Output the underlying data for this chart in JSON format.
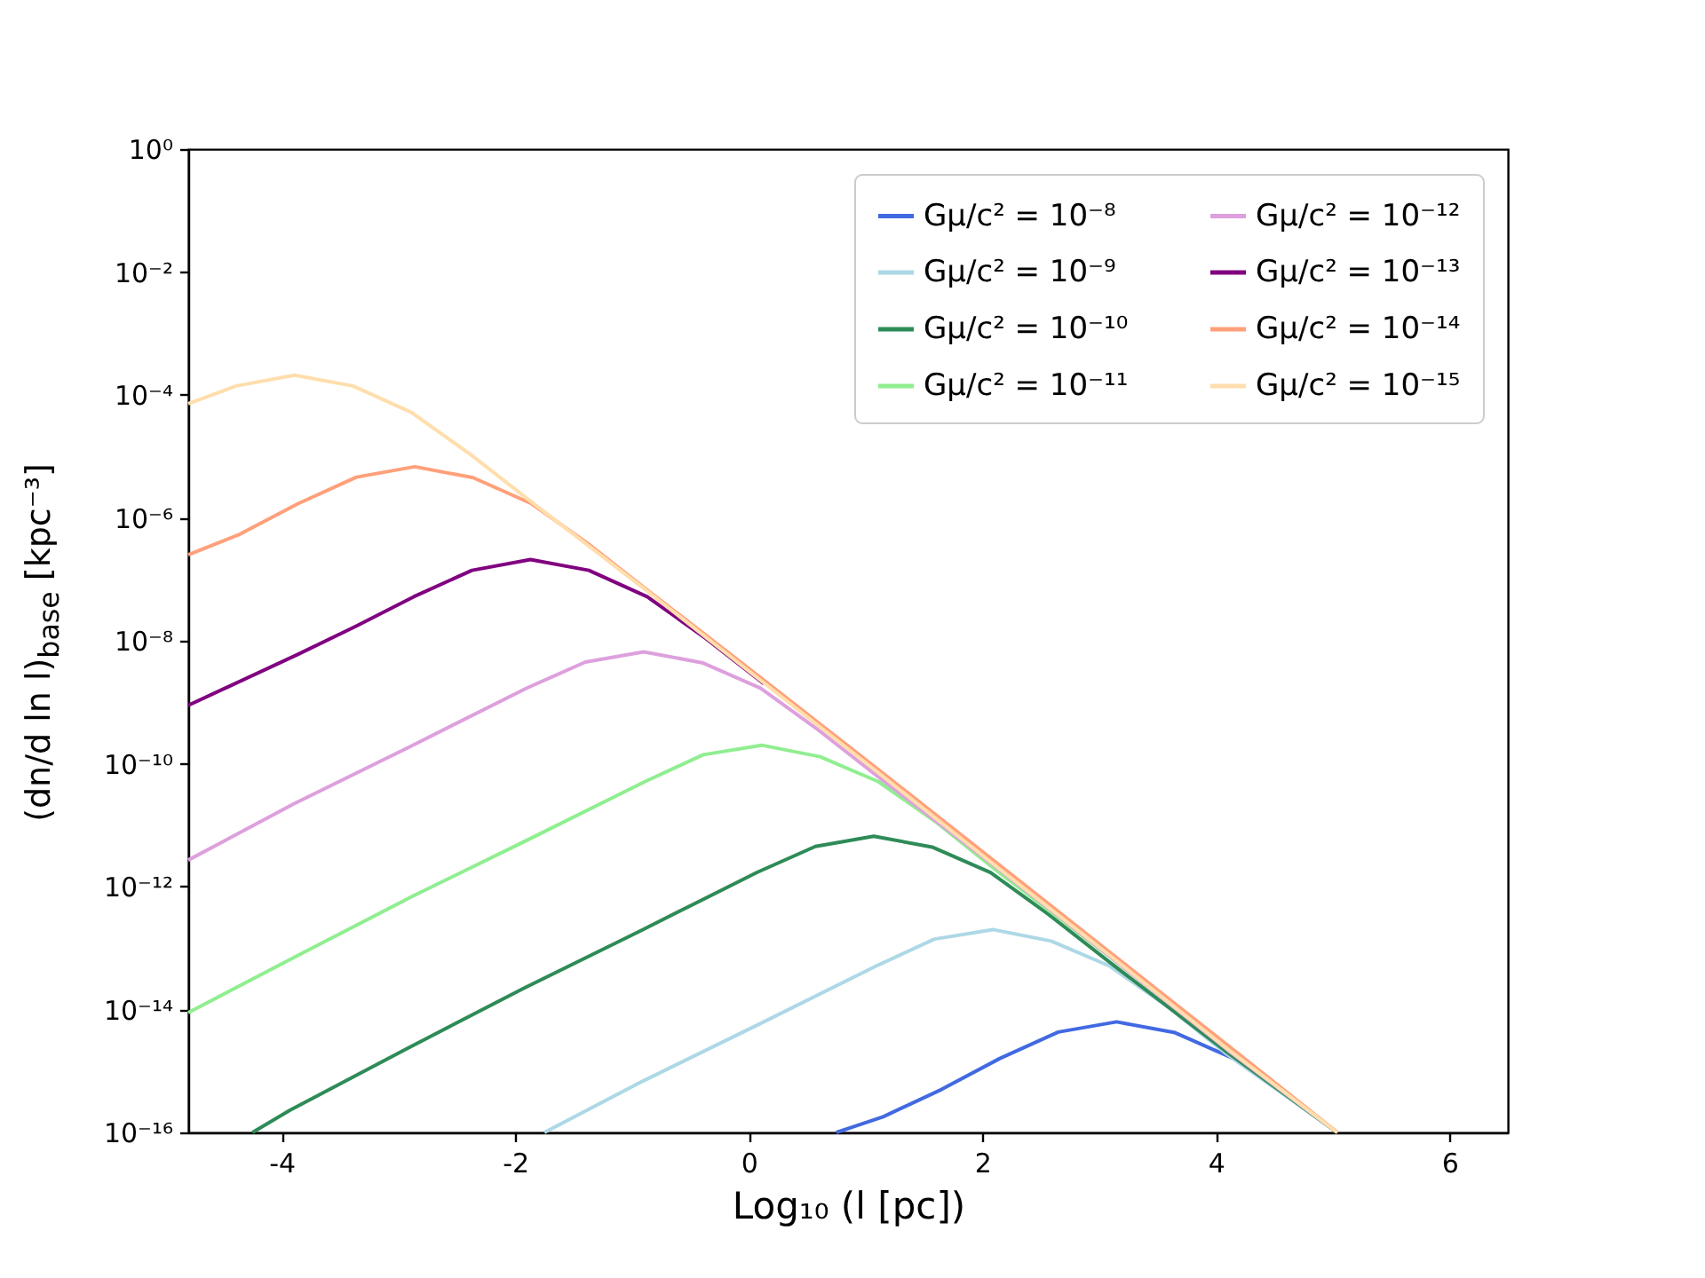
{
  "chart_data": {
    "type": "line",
    "xlabel": "Log₁₀ (l [pc])",
    "ylabel": "(dn/d ln l)$_{base}$ [kpc⁻³]",
    "log": "y",
    "grid": false,
    "legend": "top right",
    "marker": "none",
    "line_style": "solid",
    "xlim": [
      -4.8,
      6.5
    ],
    "xticks": [
      -4,
      -2,
      0,
      2,
      4,
      6
    ],
    "ylim": [
      1e-16,
      1
    ],
    "yticks": [
      {
        "value": 1,
        "label": "10⁰"
      },
      {
        "value": 0.01,
        "label": "10⁻²"
      },
      {
        "value": 0.0001,
        "label": "10⁻⁴"
      },
      {
        "value": 1e-06,
        "label": "10⁻⁶"
      },
      {
        "value": 1e-08,
        "label": "10⁻⁸"
      },
      {
        "value": 1e-10,
        "label": "10⁻¹⁰"
      },
      {
        "value": 1e-12,
        "label": "10⁻¹²"
      },
      {
        "value": 1e-14,
        "label": "10⁻¹⁴"
      },
      {
        "value": 1e-16,
        "label": "10⁻¹⁶"
      }
    ],
    "series": [
      {
        "name": "Gμ/c² = 10⁻⁸",
        "color": "#4169e1",
        "x": [
          0.75,
          1.15,
          1.65,
          2.15,
          2.65,
          3.15,
          3.65,
          4.15,
          4.65,
          5.04
        ],
        "values": [
          1e-16,
          1.8e-16,
          5e-16,
          1.6e-15,
          4.3e-15,
          6.3e-15,
          4.2e-15,
          1.6e-15,
          3.4e-16,
          1e-16
        ]
      },
      {
        "name": "Gμ/c² = 10⁻⁹",
        "color": "#add8e6",
        "x": [
          -1.75,
          -0.91,
          0.09,
          1.09,
          1.59,
          2.09,
          2.59,
          3.09,
          3.59,
          4.09,
          5.04
        ],
        "values": [
          1e-16,
          6.8e-16,
          5.8e-15,
          5.1e-14,
          1.4e-13,
          2e-13,
          1.3e-13,
          5.1e-14,
          1.1e-14,
          1.9e-15,
          1e-16
        ]
      },
      {
        "name": "Gμ/c² = 10⁻¹⁰",
        "color": "#2e8b57",
        "x": [
          -4.25,
          -3.93,
          -2.93,
          -1.93,
          -0.93,
          0.07,
          0.57,
          1.07,
          1.57,
          2.07,
          2.57,
          3.07,
          4.07,
          5.04
        ],
        "values": [
          1e-16,
          2.3e-16,
          2.3e-15,
          2.2e-14,
          1.9e-13,
          1.7e-12,
          4.5e-12,
          6.6e-12,
          4.4e-12,
          1.7e-12,
          3.5e-13,
          6.3e-14,
          2.2e-15,
          1e-16
        ]
      },
      {
        "name": "Gμ/c² = 10⁻¹¹",
        "color": "#90ee90",
        "x": [
          -4.8,
          -3.89,
          -2.89,
          -1.89,
          -0.89,
          -0.39,
          0.11,
          0.61,
          1.11,
          1.61,
          2.11,
          3.11,
          4.11,
          5.04
        ],
        "values": [
          8.9e-15,
          7.1e-14,
          6.8e-13,
          5.8e-12,
          5.1e-11,
          1.4e-10,
          2e-10,
          1.3e-10,
          5.1e-11,
          1.1e-11,
          1.9e-12,
          6.8e-14,
          2.2e-15,
          1e-16
        ]
      },
      {
        "name": "Gμ/c² = 10⁻¹²",
        "color": "#dda0dd",
        "x": [
          -4.8,
          -3.9,
          -2.9,
          -1.9,
          -1.4,
          -0.9,
          -0.4,
          0.1,
          0.6,
          1.1,
          2.1,
          3.1,
          4.1,
          5.04
        ],
        "values": [
          2.7e-12,
          2.2e-11,
          1.9e-10,
          1.7e-09,
          4.5e-09,
          6.6e-09,
          4.4e-09,
          1.7e-09,
          3.5e-10,
          6.3e-11,
          2.2e-12,
          7.1e-14,
          2.2e-15,
          1e-16
        ]
      },
      {
        "name": "Gμ/c² = 10⁻¹³",
        "color": "#800080",
        "x": [
          -4.8,
          -3.87,
          -3.37,
          -2.87,
          -2.37,
          -1.87,
          -1.37,
          -0.87,
          -0.37,
          0.13
        ],
        "values": [
          8.9e-10,
          5.9e-09,
          1.7e-08,
          5.2e-08,
          1.4e-07,
          2.1e-07,
          1.4e-07,
          5.2e-08,
          1.1e-08,
          2e-09
        ]
      },
      {
        "name": "Gμ/c² = 10⁻¹⁴",
        "color": "#ffa07a",
        "x": [
          -4.8,
          -4.36,
          -3.86,
          -3.36,
          -2.86,
          -2.36,
          -1.86,
          -1.36,
          -0.86,
          0.14,
          1.14,
          2.14,
          3.14,
          4.14,
          5.04
        ],
        "values": [
          2.5e-07,
          5.4e-07,
          1.7e-06,
          4.6e-06,
          6.8e-06,
          4.5e-06,
          1.7e-06,
          3.6e-07,
          6.5e-08,
          2.2e-09,
          7.2e-11,
          2.3e-12,
          7.2e-14,
          2.3e-15,
          1e-16
        ]
      },
      {
        "name": "Gμ/c² = 10⁻¹⁵",
        "color": "#ffdead",
        "x": [
          -4.8,
          -4.39,
          -3.89,
          -3.39,
          -2.89,
          -2.39,
          -1.89,
          -0.89,
          0.11,
          1.11,
          2.11,
          3.11,
          4.11,
          5.04
        ],
        "values": [
          7.2e-05,
          0.00014,
          0.00021,
          0.00014,
          5.2e-05,
          1.1e-05,
          2e-06,
          6.9e-08,
          2.2e-09,
          7.1e-11,
          2.2e-12,
          7.1e-14,
          2.2e-15,
          1e-16
        ]
      }
    ]
  }
}
